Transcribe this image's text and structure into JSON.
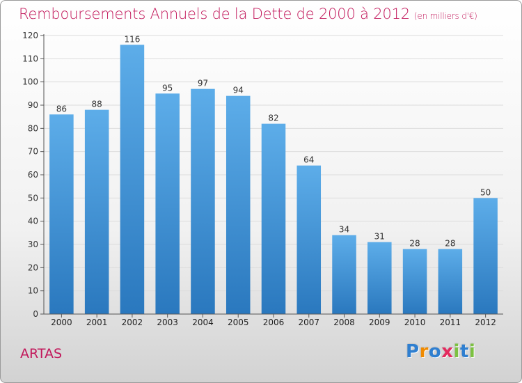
{
  "header": {
    "title": "Remboursements Annuels de la Dette de 2000 à 2012",
    "unit": "(en milliers d'€)"
  },
  "commune": "ARTAS",
  "logo": {
    "letters": [
      "P",
      "r",
      "o",
      "x",
      "i",
      "t",
      "i"
    ],
    "colors": [
      "#2f7fd0",
      "#f08a00",
      "#2f7fd0",
      "#e32a5e",
      "#7cc141",
      "#2f7fd0",
      "#7cc141"
    ]
  },
  "chart_data": {
    "type": "bar",
    "title": "Remboursements Annuels de la Dette de 2000 à 2012",
    "categories": [
      "2000",
      "2001",
      "2002",
      "2003",
      "2004",
      "2005",
      "2006",
      "2007",
      "2008",
      "2009",
      "2010",
      "2011",
      "2012"
    ],
    "values": [
      86,
      88,
      116,
      95,
      97,
      94,
      82,
      64,
      34,
      31,
      28,
      28,
      50
    ],
    "ylim": [
      0,
      120
    ],
    "yticks": [
      0,
      10,
      20,
      30,
      40,
      50,
      60,
      70,
      80,
      90,
      100,
      110,
      120
    ],
    "grid": true,
    "colors": {
      "bar_top": "#5dade9",
      "bar_bottom": "#2a78be",
      "grid": "#dcdcdc",
      "axis": "#555555"
    }
  }
}
